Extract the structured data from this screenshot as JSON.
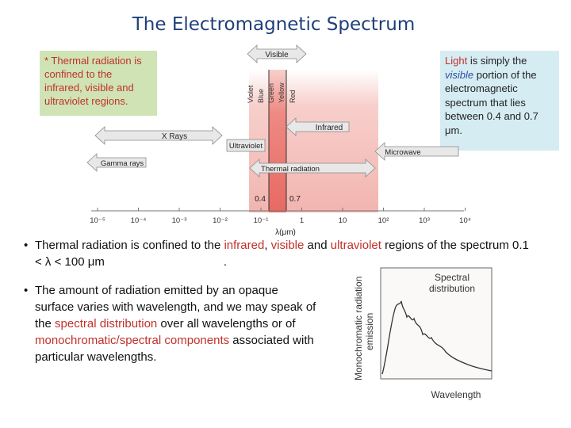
{
  "title": "The Electromagnetic Spectrum",
  "note_left": "* Thermal radiation is confined to the infrared, visible and ultraviolet regions.",
  "note_right": {
    "light": "Light",
    "is_simply": " is simply the ",
    "visible": "visible",
    "rest": " portion of the electromagnetic spectrum that lies between 0.4 and 0.7 μm."
  },
  "spectrum": {
    "bands": {
      "visible": "Visible",
      "infrared": "Infrared",
      "xrays": "X Rays",
      "ultraviolet": "Ultraviolet",
      "microwave": "Microwave",
      "thermal": "Thermal radiation",
      "gamma": "Gamma rays"
    },
    "colors": [
      "Violet",
      "Blue",
      "Green",
      "Yellow",
      "Red"
    ],
    "marker_04": "0.4",
    "marker_07": "0.7",
    "ticks": [
      "10⁻⁵",
      "10⁻⁴",
      "10⁻³",
      "10⁻²",
      "10⁻¹",
      "1",
      "10",
      "10²",
      "10³",
      "10⁴"
    ],
    "axis_label": "λ(μm)"
  },
  "bullet1": {
    "a": "Thermal radiation is confined to the ",
    "infrared": "infrared",
    "b": ", ",
    "visible": "visible",
    "c": " and ",
    "ultraviolet": "ultraviolet",
    "d": " regions of the spectrum 0.1 < λ < 100 μm",
    "e": "."
  },
  "bullet2": {
    "a": "The amount of radiation emitted by an opaque surface varies with wavelength, and we may speak of the ",
    "spectral": "spectral distribution",
    "b": " over all wavelengths or of ",
    "mono": "monochromatic/spectral components",
    "c": " associated with particular wavelengths."
  },
  "chart": {
    "ylabel_1": "Monochromatic radiation",
    "ylabel_2": "emission",
    "xlabel": "Wavelength",
    "annotation_1": "Spectral",
    "annotation_2": "distribution"
  },
  "colors": {
    "title": "#1f3f7a",
    "highlight_red": "#c0312b",
    "highlight_blue": "#2a4fa0",
    "note_left_bg": "#cfe3b4",
    "note_right_bg": "#d6ecf3",
    "thermal_band": "#f2b5b0",
    "visible_band": "#e86a63"
  }
}
